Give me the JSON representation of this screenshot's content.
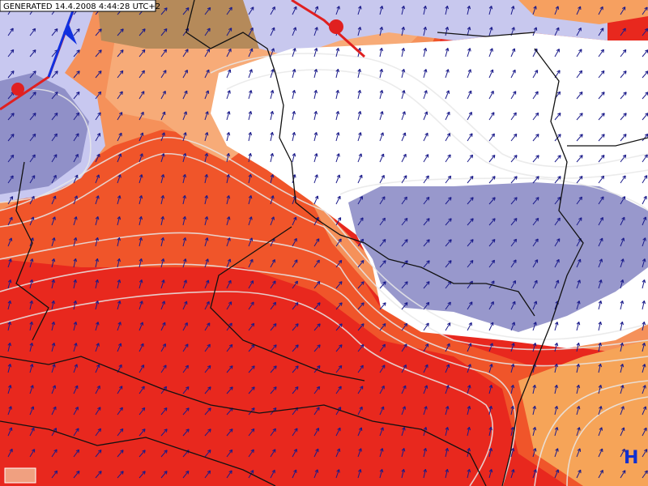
{
  "header": {
    "generated": "GENERATED 14.4.2008 4:44:28 UTC+2"
  },
  "labels": {
    "pressure_center": "H"
  }
}
